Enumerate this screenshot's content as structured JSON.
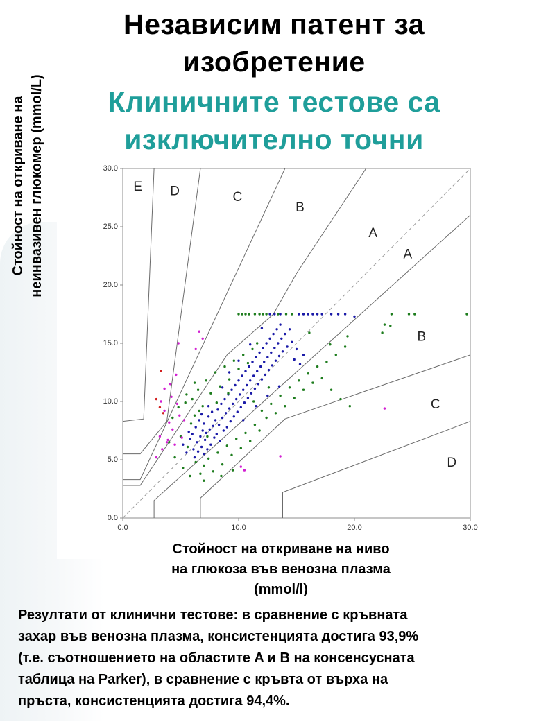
{
  "header": {
    "title_line1": "Независим патент за",
    "title_line2": "изобретение",
    "subtitle_line1": "Клиничните тестове са",
    "subtitle_line2": "изключително точни"
  },
  "axes": {
    "ylabel_line1": "Стойност на откриване на",
    "ylabel_line2": "неинвазивен глюкомер (mmol/L)",
    "xlabel_line1": "Стойност на откриване на ниво",
    "xlabel_line2": "на глюкоза във венозна плазма",
    "xlabel_line3": "(mmol/l)"
  },
  "caption": {
    "line1": "Резултати от клинични тестове: в сравнение с кръвната",
    "line2": "захар във венозна плазма, консистенцията достига 93,9%",
    "line3": "(т.е. съотношението на областите A и B на консенсусната",
    "line4": "таблица на Parker), в сравнение с кръвта от върха на",
    "line5": "пръста, консистенцията достига 94,4%."
  },
  "colors": {
    "title": "#000000",
    "subtitle": "#1f9e9a",
    "zone_line": "#6b6b6b",
    "diagonal": "#9a9a9a",
    "series_blue": "#1a1aa8",
    "series_green": "#1e7d1e",
    "series_magenta": "#d21fd2",
    "series_red": "#d21e1e"
  },
  "chart_data": {
    "type": "scatter",
    "title": "",
    "xlabel": "Стойност на откриване на ниво на глюкоза във венозна плазма (mmol/l)",
    "ylabel": "Стойност на откриване на неинвазивен глюкомер (mmol/L)",
    "xlim": [
      0,
      30
    ],
    "ylim": [
      0,
      30
    ],
    "xticks": [
      "0.0",
      "10.0",
      "20.0",
      "30.0"
    ],
    "yticks": [
      "0.0",
      "5.0",
      "10.0",
      "15.0",
      "20.0",
      "25.0",
      "30.0"
    ],
    "grid": false,
    "reference_line": {
      "style": "dashed",
      "points": [
        [
          0,
          0
        ],
        [
          30,
          30
        ]
      ]
    },
    "zone_boundaries": [
      [
        [
          0,
          8.3
        ],
        [
          1.8,
          8.5
        ],
        [
          2.7,
          30
        ]
      ],
      [
        [
          0,
          5.5
        ],
        [
          1.5,
          5.5
        ],
        [
          3.8,
          8.3
        ],
        [
          6.7,
          30
        ]
      ],
      [
        [
          0,
          3.3
        ],
        [
          1.5,
          3.3
        ],
        [
          14.0,
          30
        ]
      ],
      [
        [
          0,
          2.8
        ],
        [
          1.5,
          2.8
        ],
        [
          9.0,
          14.0
        ],
        [
          13.0,
          17.5
        ],
        [
          15.0,
          21.0
        ],
        [
          21.0,
          30.0
        ]
      ],
      [
        [
          2.7,
          0
        ],
        [
          2.7,
          1.5
        ],
        [
          30,
          26.0
        ]
      ],
      [
        [
          6.7,
          0
        ],
        [
          6.7,
          1.7
        ],
        [
          14.0,
          8.5
        ],
        [
          30,
          14.0
        ]
      ],
      [
        [
          13.8,
          0
        ],
        [
          13.8,
          2.2
        ],
        [
          30,
          8.3
        ]
      ]
    ],
    "zone_labels": [
      {
        "text": "E",
        "x": 1.3,
        "y": 28.4
      },
      {
        "text": "D",
        "x": 4.5,
        "y": 28.0
      },
      {
        "text": "C",
        "x": 9.9,
        "y": 27.5
      },
      {
        "text": "B",
        "x": 15.3,
        "y": 26.6
      },
      {
        "text": "A",
        "x": 21.6,
        "y": 24.4
      },
      {
        "text": "A",
        "x": 24.6,
        "y": 22.6
      },
      {
        "text": "B",
        "x": 25.8,
        "y": 15.5
      },
      {
        "text": "C",
        "x": 27.0,
        "y": 9.7
      },
      {
        "text": "D",
        "x": 28.4,
        "y": 4.7
      }
    ],
    "series": [
      {
        "color": "#1a1aa8",
        "points": [
          [
            5.2,
            6.3
          ],
          [
            5.5,
            5.6
          ],
          [
            5.8,
            6.8
          ],
          [
            6.0,
            7.2
          ],
          [
            6.1,
            5.9
          ],
          [
            6.3,
            7.8
          ],
          [
            6.4,
            6.5
          ],
          [
            6.5,
            5.7
          ],
          [
            6.6,
            8.4
          ],
          [
            6.7,
            7.0
          ],
          [
            6.8,
            6.1
          ],
          [
            6.9,
            7.5
          ],
          [
            7.0,
            8.1
          ],
          [
            7.1,
            6.7
          ],
          [
            7.2,
            7.3
          ],
          [
            7.3,
            5.9
          ],
          [
            7.4,
            8.7
          ],
          [
            7.5,
            7.6
          ],
          [
            7.6,
            6.3
          ],
          [
            7.7,
            9.1
          ],
          [
            7.8,
            7.9
          ],
          [
            7.9,
            6.9
          ],
          [
            8.0,
            8.4
          ],
          [
            8.1,
            7.2
          ],
          [
            8.2,
            9.3
          ],
          [
            8.3,
            8.0
          ],
          [
            8.4,
            6.6
          ],
          [
            8.5,
            9.8
          ],
          [
            8.6,
            8.6
          ],
          [
            8.7,
            7.5
          ],
          [
            8.8,
            10.2
          ],
          [
            8.9,
            9.0
          ],
          [
            9.0,
            7.8
          ],
          [
            9.1,
            10.6
          ],
          [
            9.2,
            9.4
          ],
          [
            9.3,
            8.3
          ],
          [
            9.4,
            11.0
          ],
          [
            9.5,
            9.8
          ],
          [
            9.6,
            8.7
          ],
          [
            9.7,
            11.4
          ],
          [
            9.8,
            10.2
          ],
          [
            9.9,
            9.1
          ],
          [
            10.0,
            11.8
          ],
          [
            10.1,
            10.6
          ],
          [
            10.2,
            9.5
          ],
          [
            10.3,
            12.2
          ],
          [
            10.4,
            11.0
          ],
          [
            10.5,
            9.9
          ],
          [
            10.6,
            12.6
          ],
          [
            10.7,
            11.4
          ],
          [
            10.8,
            10.3
          ],
          [
            10.9,
            13.0
          ],
          [
            11.0,
            11.8
          ],
          [
            11.1,
            10.7
          ],
          [
            11.2,
            13.4
          ],
          [
            11.3,
            12.2
          ],
          [
            11.4,
            11.1
          ],
          [
            11.5,
            13.8
          ],
          [
            11.6,
            12.6
          ],
          [
            11.7,
            11.5
          ],
          [
            11.8,
            14.2
          ],
          [
            11.9,
            13.0
          ],
          [
            12.0,
            11.9
          ],
          [
            12.1,
            14.6
          ],
          [
            12.2,
            13.4
          ],
          [
            12.3,
            12.3
          ],
          [
            12.4,
            15.0
          ],
          [
            12.5,
            13.8
          ],
          [
            12.6,
            12.7
          ],
          [
            12.7,
            15.4
          ],
          [
            12.8,
            14.2
          ],
          [
            12.9,
            13.1
          ],
          [
            13.0,
            15.8
          ],
          [
            13.1,
            14.6
          ],
          [
            13.2,
            13.5
          ],
          [
            13.3,
            16.2
          ],
          [
            13.4,
            15.0
          ],
          [
            13.5,
            13.9
          ],
          [
            13.6,
            16.6
          ],
          [
            13.7,
            15.4
          ],
          [
            13.8,
            14.3
          ],
          [
            14.0,
            15.8
          ],
          [
            14.2,
            14.7
          ],
          [
            14.4,
            16.2
          ],
          [
            14.6,
            15.1
          ],
          [
            14.8,
            13.6
          ],
          [
            15.0,
            14.5
          ],
          [
            15.3,
            13.2
          ],
          [
            15.6,
            14.0
          ],
          [
            9.2,
            12.5
          ],
          [
            10.0,
            13.5
          ],
          [
            11.0,
            14.9
          ],
          [
            12.0,
            16.3
          ],
          [
            12.7,
            17.5
          ],
          [
            13.1,
            17.5
          ],
          [
            13.6,
            17.5
          ],
          [
            15.2,
            17.5
          ],
          [
            15.6,
            17.5
          ],
          [
            16.0,
            17.5
          ],
          [
            16.4,
            17.5
          ],
          [
            16.8,
            17.5
          ],
          [
            17.2,
            17.5
          ],
          [
            18.0,
            17.5
          ],
          [
            18.6,
            17.5
          ],
          [
            19.2,
            17.5
          ],
          [
            20.0,
            17.3
          ],
          [
            8.6,
            11.2
          ],
          [
            7.4,
            9.6
          ],
          [
            6.8,
            8.9
          ],
          [
            5.7,
            7.4
          ],
          [
            6.2,
            5.2
          ],
          [
            7.0,
            5.5
          ],
          [
            10.4,
            8.4
          ],
          [
            11.5,
            9.6
          ],
          [
            12.5,
            10.5
          ],
          [
            13.5,
            11.3
          ]
        ]
      },
      {
        "color": "#1e7d1e",
        "points": [
          [
            4.0,
            6.5
          ],
          [
            4.3,
            8.6
          ],
          [
            4.5,
            5.2
          ],
          [
            4.8,
            9.5
          ],
          [
            5.0,
            7.0
          ],
          [
            5.2,
            4.3
          ],
          [
            5.4,
            9.9
          ],
          [
            5.6,
            6.1
          ],
          [
            5.8,
            3.6
          ],
          [
            6.0,
            10.2
          ],
          [
            6.2,
            8.8
          ],
          [
            6.3,
            4.8
          ],
          [
            6.5,
            11.0
          ],
          [
            6.7,
            3.8
          ],
          [
            6.9,
            9.6
          ],
          [
            7.0,
            4.5
          ],
          [
            7.2,
            11.8
          ],
          [
            7.4,
            5.1
          ],
          [
            7.6,
            10.7
          ],
          [
            7.8,
            4.0
          ],
          [
            8.0,
            12.5
          ],
          [
            8.2,
            5.6
          ],
          [
            8.4,
            11.3
          ],
          [
            8.6,
            4.6
          ],
          [
            8.8,
            13.0
          ],
          [
            9.0,
            6.2
          ],
          [
            9.2,
            11.9
          ],
          [
            9.4,
            5.4
          ],
          [
            9.6,
            13.5
          ],
          [
            9.8,
            6.8
          ],
          [
            10.0,
            12.8
          ],
          [
            10.2,
            6.0
          ],
          [
            10.4,
            14.0
          ],
          [
            10.6,
            7.3
          ],
          [
            10.8,
            13.3
          ],
          [
            11.0,
            6.6
          ],
          [
            11.2,
            14.5
          ],
          [
            11.4,
            8.0
          ],
          [
            11.6,
            15.0
          ],
          [
            11.8,
            7.5
          ],
          [
            12.0,
            9.2
          ],
          [
            12.4,
            8.6
          ],
          [
            12.8,
            9.8
          ],
          [
            13.2,
            9.0
          ],
          [
            13.6,
            10.5
          ],
          [
            14.0,
            9.6
          ],
          [
            14.4,
            11.2
          ],
          [
            14.8,
            10.3
          ],
          [
            15.2,
            11.8
          ],
          [
            15.6,
            11.0
          ],
          [
            16.0,
            12.4
          ],
          [
            16.4,
            11.6
          ],
          [
            16.8,
            13.0
          ],
          [
            17.2,
            12.0
          ],
          [
            17.6,
            13.4
          ],
          [
            18.0,
            11.0
          ],
          [
            18.4,
            14.0
          ],
          [
            18.8,
            10.2
          ],
          [
            19.2,
            14.7
          ],
          [
            19.6,
            9.6
          ],
          [
            10.0,
            17.5
          ],
          [
            10.3,
            17.5
          ],
          [
            10.6,
            17.5
          ],
          [
            10.9,
            17.5
          ],
          [
            11.4,
            17.5
          ],
          [
            11.8,
            17.5
          ],
          [
            12.1,
            17.5
          ],
          [
            12.4,
            17.5
          ],
          [
            13.4,
            17.5
          ],
          [
            14.1,
            17.5
          ],
          [
            14.6,
            17.5
          ],
          [
            23.1,
            16.5
          ],
          [
            23.2,
            17.5
          ],
          [
            24.7,
            17.5
          ],
          [
            25.2,
            17.5
          ],
          [
            29.7,
            17.5
          ],
          [
            22.4,
            15.9
          ],
          [
            22.6,
            16.6
          ],
          [
            7.0,
            3.2
          ],
          [
            8.5,
            3.6
          ],
          [
            9.5,
            4.1
          ],
          [
            5.9,
            8.1
          ],
          [
            6.6,
            9.2
          ],
          [
            7.3,
            7.0
          ],
          [
            8.1,
            9.9
          ],
          [
            9.1,
            10.7
          ],
          [
            11.3,
            10.0
          ],
          [
            12.6,
            11.2
          ],
          [
            17.9,
            14.9
          ],
          [
            19.4,
            15.6
          ],
          [
            16.1,
            15.9
          ],
          [
            6.2,
            11.6
          ],
          [
            5.5,
            10.6
          ]
        ]
      },
      {
        "color": "#d21fd2",
        "points": [
          [
            2.9,
            5.2
          ],
          [
            3.2,
            7.0
          ],
          [
            3.4,
            5.9
          ],
          [
            3.6,
            9.2
          ],
          [
            3.9,
            6.7
          ],
          [
            4.0,
            8.2
          ],
          [
            4.2,
            10.4
          ],
          [
            4.3,
            7.6
          ],
          [
            4.5,
            6.3
          ],
          [
            4.7,
            9.8
          ],
          [
            4.9,
            8.8
          ],
          [
            5.1,
            6.9
          ],
          [
            3.3,
            10.0
          ],
          [
            3.6,
            11.1
          ],
          [
            4.1,
            11.5
          ],
          [
            4.6,
            12.3
          ],
          [
            6.3,
            14.5
          ],
          [
            6.6,
            16.0
          ],
          [
            6.9,
            15.4
          ],
          [
            4.8,
            15.0
          ],
          [
            10.2,
            4.4
          ],
          [
            10.5,
            4.1
          ],
          [
            13.6,
            5.3
          ],
          [
            22.6,
            9.4
          ],
          [
            3.8,
            6.5
          ],
          [
            5.3,
            8.4
          ]
        ]
      },
      {
        "color": "#d21e1e",
        "points": [
          [
            2.9,
            10.2
          ],
          [
            3.2,
            9.5
          ],
          [
            3.3,
            12.6
          ],
          [
            3.5,
            9.0
          ]
        ]
      }
    ]
  }
}
